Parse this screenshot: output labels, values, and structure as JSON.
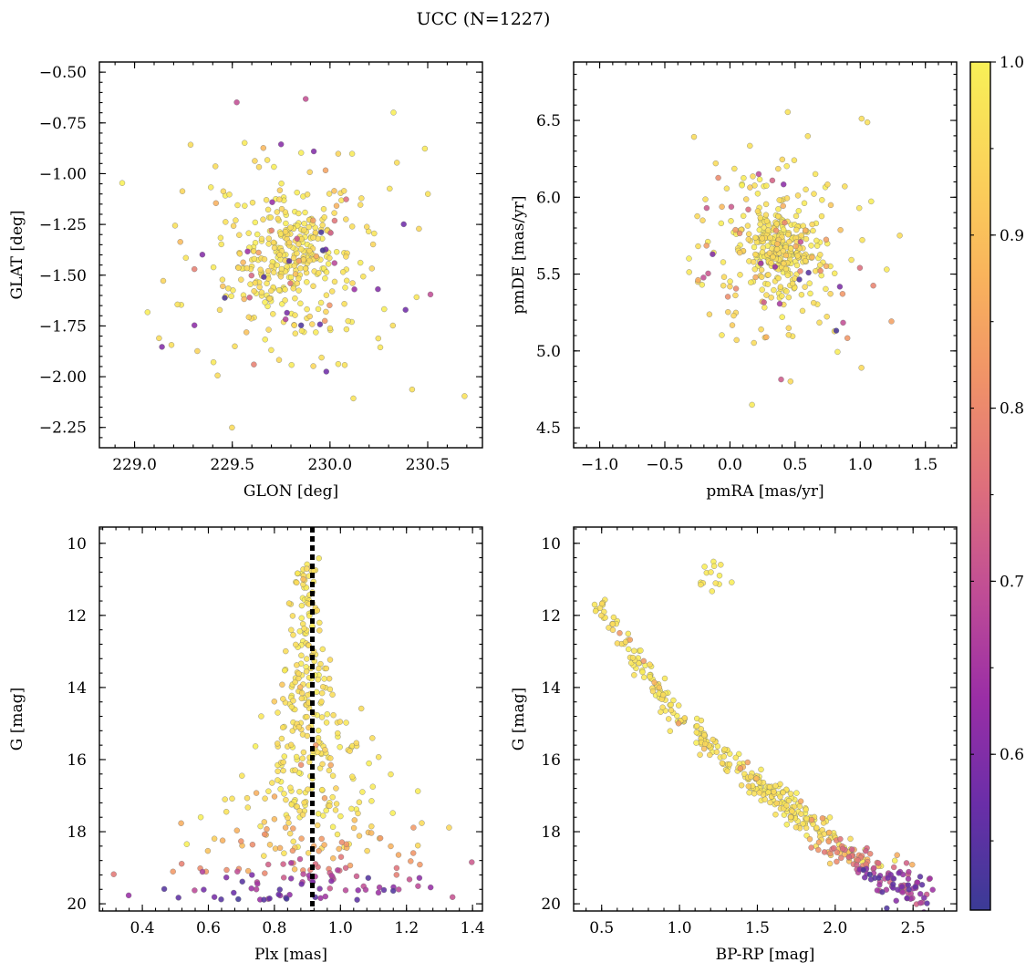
{
  "figure": {
    "title": "UCC (N=1227)"
  },
  "colorbar": {
    "range": [
      0.51,
      1.0
    ],
    "ticks": [
      0.6,
      0.7,
      0.8,
      0.9,
      1.0
    ],
    "tick_labels": [
      "0.6",
      "0.7",
      "0.8",
      "0.9",
      "1.0"
    ],
    "colormap": "plasma",
    "stops": [
      "#3b3b96",
      "#6a2ea8",
      "#9a2ea6",
      "#c04d95",
      "#de6f7c",
      "#f09268",
      "#f9b45c",
      "#fad35a",
      "#f8f057"
    ]
  },
  "chart_data": [
    {
      "type": "scatter",
      "xlabel": "GLON [deg]",
      "ylabel": "GLAT [deg]",
      "xlim": [
        228.82,
        230.78
      ],
      "ylim": [
        -2.35,
        -0.45
      ],
      "xticks": [
        229.0,
        229.5,
        230.0,
        230.5
      ],
      "xtick_labels": [
        "229.0",
        "229.5",
        "230.0",
        "230.5"
      ],
      "yticks": [
        -2.25,
        -2.0,
        -1.75,
        -1.5,
        -1.25,
        -1.0,
        -0.75,
        -0.5
      ],
      "ytick_labels": [
        "−2.25",
        "−2.00",
        "−1.75",
        "−1.50",
        "−1.25",
        "−1.00",
        "−0.75",
        "−0.50"
      ],
      "invert_y": false,
      "n_points": 1227,
      "center": [
        229.8,
        -1.42
      ],
      "core_spread": [
        0.13,
        0.16
      ],
      "halo_spread": [
        0.36,
        0.33
      ]
    },
    {
      "type": "scatter",
      "xlabel": "pmRA [mas/yr]",
      "ylabel": "pmDE [mas/yr]",
      "xlim": [
        -1.2,
        1.74
      ],
      "ylim": [
        4.37,
        6.88
      ],
      "xticks": [
        -1.0,
        -0.5,
        0.0,
        0.5,
        1.0,
        1.5
      ],
      "xtick_labels": [
        "−1.0",
        "−0.5",
        "0.0",
        "0.5",
        "1.0",
        "1.5"
      ],
      "yticks": [
        4.5,
        5.0,
        5.5,
        6.0,
        6.5
      ],
      "ytick_labels": [
        "4.5",
        "5.0",
        "5.5",
        "6.0",
        "6.5"
      ],
      "invert_y": false,
      "n_points": 1227,
      "center": [
        0.37,
        5.65
      ],
      "core_spread": [
        0.14,
        0.14
      ],
      "halo_spread": [
        0.38,
        0.36
      ]
    },
    {
      "type": "scatter",
      "xlabel": "Plx [mas]",
      "ylabel": "G [mag]",
      "xlim": [
        0.27,
        1.43
      ],
      "ylim": [
        20.2,
        9.55
      ],
      "xticks": [
        0.4,
        0.6,
        0.8,
        1.0,
        1.2,
        1.4
      ],
      "xtick_labels": [
        "0.4",
        "0.6",
        "0.8",
        "1.0",
        "1.2",
        "1.4"
      ],
      "yticks": [
        10,
        12,
        14,
        16,
        18,
        20
      ],
      "ytick_labels": [
        "10",
        "12",
        "14",
        "16",
        "18",
        "20"
      ],
      "invert_y": true,
      "n_points": 1227,
      "center_plx": 0.9,
      "reference_line_x": 0.915
    },
    {
      "type": "scatter",
      "xlabel": "BP-RP [mag]",
      "ylabel": "G [mag]",
      "xlim": [
        0.32,
        2.78
      ],
      "ylim": [
        20.2,
        9.55
      ],
      "xticks": [
        0.5,
        1.0,
        1.5,
        2.0,
        2.5
      ],
      "xtick_labels": [
        "0.5",
        "1.0",
        "1.5",
        "2.0",
        "2.5"
      ],
      "yticks": [
        10,
        12,
        14,
        16,
        18,
        20
      ],
      "ytick_labels": [
        "10",
        "12",
        "14",
        "16",
        "18",
        "20"
      ],
      "invert_y": true,
      "n_points": 1227,
      "sequence": [
        [
          0.45,
          11.6
        ],
        [
          0.7,
          13.1
        ],
        [
          1.0,
          14.8
        ],
        [
          1.3,
          16.0
        ],
        [
          1.6,
          17.0
        ],
        [
          1.9,
          18.0
        ],
        [
          2.2,
          19.0
        ],
        [
          2.5,
          19.6
        ]
      ],
      "red_clump": [
        1.2,
        10.9
      ]
    }
  ]
}
